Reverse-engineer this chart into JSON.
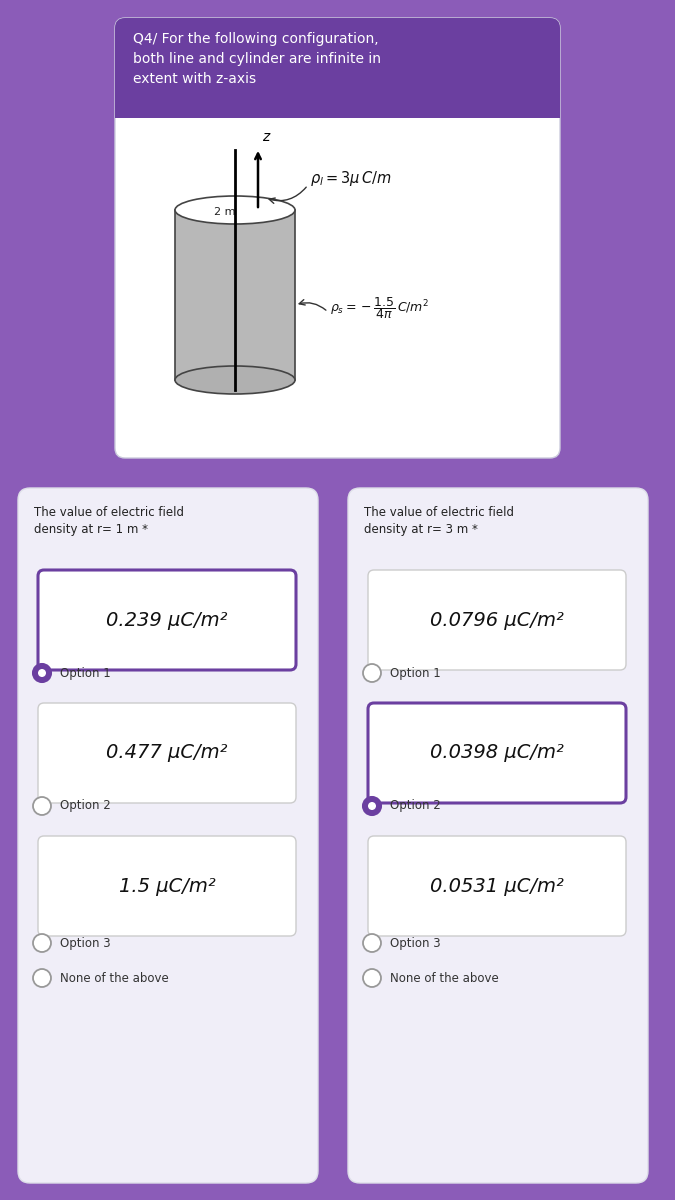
{
  "bg_color": "#8B5CB8",
  "title_text": "Q4/ For the following configuration,\nboth line and cylinder are infinite in\nextent with z-axis",
  "title_bg": "#6B3FA0",
  "left_title": "The value of electric field\ndensity at r= 1 m *",
  "right_title": "The value of electric field\ndensity at r= 3 m *",
  "left_options": [
    {
      "value": "0.239 μC/m²",
      "selected": true
    },
    {
      "value": "0.477 μC/m²",
      "selected": false
    },
    {
      "value": "1.5 μC/m²",
      "selected": false
    }
  ],
  "right_options": [
    {
      "value": "0.0796 μC/m²",
      "selected": false
    },
    {
      "value": "0.0398 μC/m²",
      "selected": true
    },
    {
      "value": "0.0531 μC/m²",
      "selected": false
    }
  ],
  "option_labels": [
    "Option 1",
    "Option 2",
    "Option 3"
  ],
  "accent_color": "#6B3FA0",
  "card_bg": "#f0eef8",
  "white": "#ffffff",
  "box_border_unsel": "#cccccc",
  "radio_unsel_edge": "#999999"
}
